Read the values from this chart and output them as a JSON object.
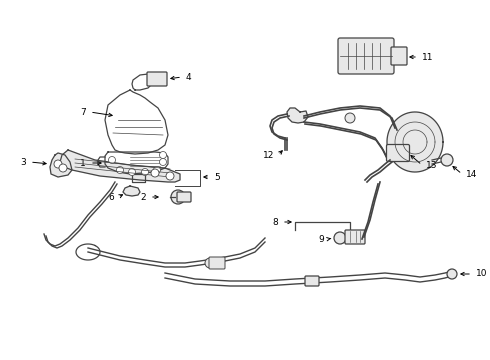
{
  "bg_color": "#ffffff",
  "line_color": "#444444",
  "label_color": "#000000",
  "fig_width": 4.9,
  "fig_height": 3.6,
  "dpi": 100
}
